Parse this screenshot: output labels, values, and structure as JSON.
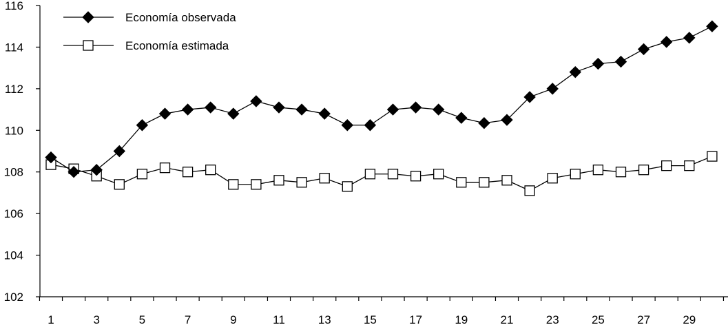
{
  "chart_data": {
    "type": "line",
    "title": "",
    "xlabel": "",
    "ylabel": "",
    "x": [
      1,
      2,
      3,
      4,
      5,
      6,
      7,
      8,
      9,
      10,
      11,
      12,
      13,
      14,
      15,
      16,
      17,
      18,
      19,
      20,
      21,
      22,
      23,
      24,
      25,
      26,
      27,
      28,
      29,
      30
    ],
    "xtick_labels": [
      "1",
      "3",
      "5",
      "7",
      "9",
      "11",
      "13",
      "15",
      "17",
      "19",
      "21",
      "23",
      "25",
      "27",
      "29"
    ],
    "ylim": [
      102,
      116
    ],
    "yticks": [
      102,
      104,
      106,
      108,
      110,
      112,
      114,
      116
    ],
    "ytick_labels": [
      "102",
      "104",
      "106",
      "108",
      "110",
      "112",
      "114",
      "116"
    ],
    "grid": false,
    "legend_position": "top-left",
    "series": [
      {
        "name": "Economía observada",
        "marker": "filled-diamond",
        "color": "#000000",
        "values": [
          108.7,
          108.0,
          108.1,
          109.0,
          110.25,
          110.8,
          111.0,
          111.1,
          110.8,
          111.4,
          111.1,
          111.0,
          110.8,
          110.25,
          110.25,
          111.0,
          111.1,
          111.0,
          110.6,
          110.35,
          110.5,
          111.6,
          112.0,
          112.8,
          113.2,
          113.3,
          113.9,
          114.25,
          114.45,
          115.0
        ]
      },
      {
        "name": "Economía estimada",
        "marker": "open-square",
        "color": "#000000",
        "values": [
          108.35,
          108.15,
          107.8,
          107.4,
          107.9,
          108.2,
          108.0,
          108.1,
          107.4,
          107.4,
          107.6,
          107.5,
          107.7,
          107.3,
          107.9,
          107.9,
          107.8,
          107.9,
          107.5,
          107.5,
          107.6,
          107.1,
          107.7,
          107.9,
          108.1,
          108.0,
          108.1,
          108.3,
          108.3,
          108.75
        ]
      }
    ]
  }
}
